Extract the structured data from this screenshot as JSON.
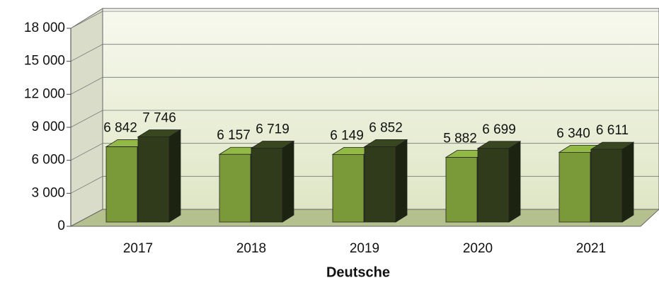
{
  "chart_data": {
    "type": "bar3d",
    "xlabel": "Deutsche",
    "categories": [
      "2017",
      "2018",
      "2019",
      "2020",
      "2021"
    ],
    "series": [
      {
        "color": "#7a9a3a",
        "values": [
          6842,
          6157,
          6149,
          5882,
          6340
        ],
        "value_labels": [
          "6 842",
          "6 157",
          "6 149",
          "5 882",
          "6 340"
        ]
      },
      {
        "color": "#2f3b1b",
        "values": [
          7746,
          6719,
          6852,
          6699,
          6611
        ],
        "value_labels": [
          "7 746",
          "6 719",
          "6 852",
          "6 699",
          "6 611"
        ]
      }
    ],
    "ylim": [
      0,
      18000
    ],
    "yticks": [
      0,
      {
        "value": 3000,
        "label": "3 000"
      },
      {
        "value": 6000,
        "label": "6 000"
      },
      {
        "value": 9000,
        "label": "9 000"
      },
      {
        "value": 12000,
        "label": "12 000"
      },
      {
        "value": 15000,
        "label": "15 000"
      },
      {
        "value": 18000,
        "label": "18 000"
      }
    ],
    "grid": true
  }
}
